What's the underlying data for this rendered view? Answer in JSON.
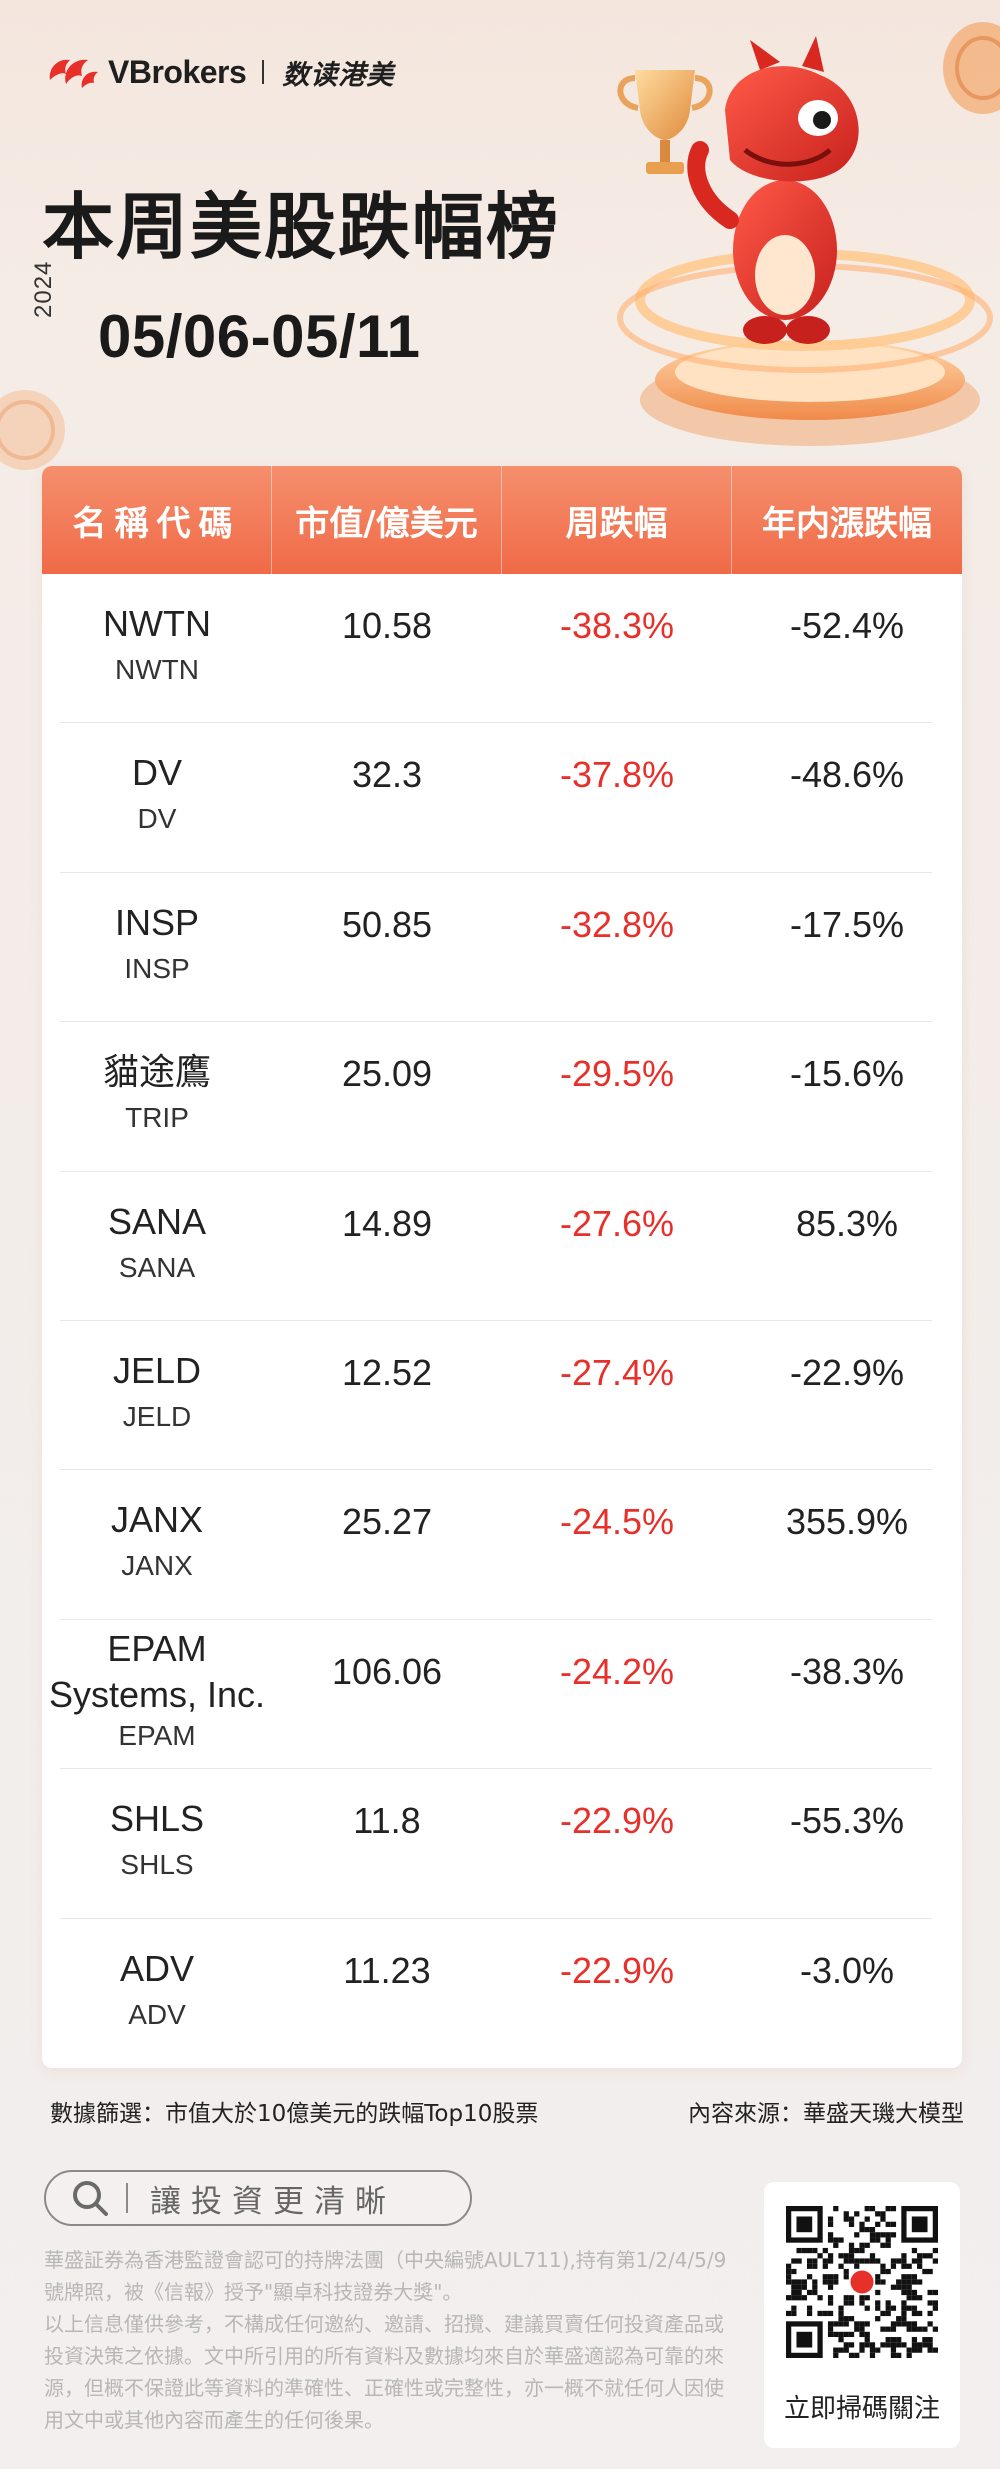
{
  "brand": {
    "name": "VBrokers",
    "sub": "数读港美"
  },
  "header": {
    "title": "本周美股跌幅榜",
    "year": "2024",
    "date_range": "05/06-05/11"
  },
  "table": {
    "columns": [
      "名稱代碼",
      "市值/億美元",
      "周跌幅",
      "年内漲跌幅"
    ],
    "rows": [
      {
        "name": "NWTN",
        "code": "NWTN",
        "market_cap": "10.58",
        "week_change": "-38.3%",
        "ytd_change": "-52.4%"
      },
      {
        "name": "DV",
        "code": "DV",
        "market_cap": "32.3",
        "week_change": "-37.8%",
        "ytd_change": "-48.6%"
      },
      {
        "name": "INSP",
        "code": "INSP",
        "market_cap": "50.85",
        "week_change": "-32.8%",
        "ytd_change": "-17.5%"
      },
      {
        "name": "貓途鷹",
        "code": "TRIP",
        "market_cap": "25.09",
        "week_change": "-29.5%",
        "ytd_change": "-15.6%"
      },
      {
        "name": "SANA",
        "code": "SANA",
        "market_cap": "14.89",
        "week_change": "-27.6%",
        "ytd_change": "85.3%"
      },
      {
        "name": "JELD",
        "code": "JELD",
        "market_cap": "12.52",
        "week_change": "-27.4%",
        "ytd_change": "-22.9%"
      },
      {
        "name": "JANX",
        "code": "JANX",
        "market_cap": "25.27",
        "week_change": "-24.5%",
        "ytd_change": "355.9%"
      },
      {
        "name_line1": "EPAM",
        "name_line2": "Systems, Inc.",
        "code": "EPAM",
        "market_cap": "106.06",
        "week_change": "-24.2%",
        "ytd_change": "-38.3%"
      },
      {
        "name": "SHLS",
        "code": "SHLS",
        "market_cap": "11.8",
        "week_change": "-22.9%",
        "ytd_change": "-55.3%"
      },
      {
        "name": "ADV",
        "code": "ADV",
        "market_cap": "11.23",
        "week_change": "-22.9%",
        "ytd_change": "-3.0%"
      }
    ]
  },
  "footer": {
    "filter_note": "數據篩選：市值大於10億美元的跌幅Top10股票",
    "source_note": "內容來源：華盛天璣大模型",
    "search_text": "讓投資更清晰",
    "disclaimer": [
      "華盛証券為香港監證會認可的持牌法團（中央編號AUL711),持有第1/2/4/5/9號牌照，被《信報》授予\"顯卓科技證券大獎\"。",
      "以上信息僅供參考，不構成任何邀約、邀請、招攬、建議買賣任何投資產品或投資決策之依據。文中所引用的所有資料及數據均來自於華盛適認為可靠的來源，但概不保證此等資料的準確性、正確性或完整性，亦一概不就任何人因使用文中或其他內容而產生的任何後果。"
    ],
    "qr_label": "立即掃碼關注"
  },
  "colors": {
    "accent": "#f06a47",
    "negative": "#e8302b",
    "header_grad_top": "#f58f6d"
  },
  "icons": {
    "brand": "vbrokers-logo-icon",
    "search": "search-icon",
    "mascot": "dragon-mascot-icon",
    "trophy": "trophy-icon",
    "qr": "qr-code-icon"
  }
}
